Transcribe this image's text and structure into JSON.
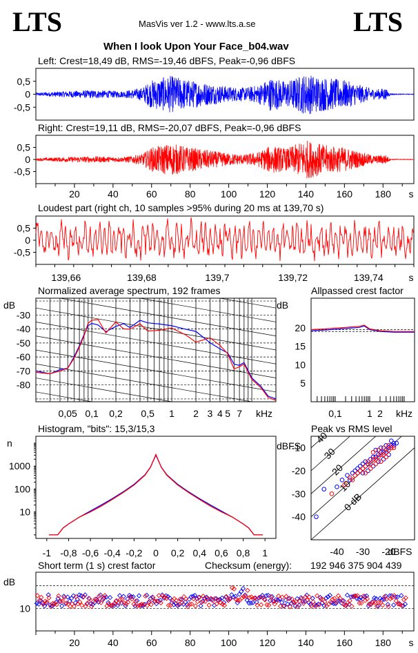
{
  "header": {
    "logo_left": "LTS",
    "logo_right": "LTS",
    "app_title": "MasVis ver 1.2 - www.lts.a.se",
    "file_name": "When I look Upon Your Face_b04.wav"
  },
  "colors": {
    "left_channel": "#0000ff",
    "right_channel": "#ff0000"
  },
  "chart_data": [
    {
      "type": "line",
      "id": "waveform-left",
      "title": "Left: Crest=18,49 dB, RMS=-19,46 dBFS, Peak=-0,96 dBFS",
      "series": [
        {
          "name": "Left",
          "color": "#0000ff"
        }
      ],
      "xlim": [
        0,
        196
      ],
      "ylim": [
        -1,
        1
      ],
      "yticks": [
        "0,5",
        "0",
        "-0,5"
      ],
      "envelope": [
        {
          "x": 0,
          "a": 0.06
        },
        {
          "x": 15,
          "a": 0.12
        },
        {
          "x": 30,
          "a": 0.16
        },
        {
          "x": 45,
          "a": 0.12
        },
        {
          "x": 55,
          "a": 0.25
        },
        {
          "x": 60,
          "a": 0.55
        },
        {
          "x": 70,
          "a": 0.72
        },
        {
          "x": 80,
          "a": 0.55
        },
        {
          "x": 90,
          "a": 0.42
        },
        {
          "x": 100,
          "a": 0.3
        },
        {
          "x": 108,
          "a": 0.25
        },
        {
          "x": 115,
          "a": 0.35
        },
        {
          "x": 122,
          "a": 0.66
        },
        {
          "x": 130,
          "a": 0.5
        },
        {
          "x": 140,
          "a": 0.8
        },
        {
          "x": 150,
          "a": 0.65
        },
        {
          "x": 160,
          "a": 0.55
        },
        {
          "x": 170,
          "a": 0.32
        },
        {
          "x": 176,
          "a": 0.18
        },
        {
          "x": 181,
          "a": 0.25
        },
        {
          "x": 184,
          "a": 0.02
        },
        {
          "x": 196,
          "a": 0.01
        }
      ]
    },
    {
      "type": "line",
      "id": "waveform-right",
      "title": "Right: Crest=19,11 dB, RMS=-20,07 dBFS, Peak=-0,96 dBFS",
      "series": [
        {
          "name": "Right",
          "color": "#ff0000"
        }
      ],
      "xlim": [
        0,
        196
      ],
      "ylim": [
        -1,
        1
      ],
      "yticks": [
        "0,5",
        "0",
        "-0,5"
      ],
      "xticks": [
        20,
        40,
        60,
        80,
        100,
        120,
        140,
        160,
        180
      ],
      "xunit": "s",
      "envelope": [
        {
          "x": 0,
          "a": 0.05
        },
        {
          "x": 15,
          "a": 0.1
        },
        {
          "x": 30,
          "a": 0.13
        },
        {
          "x": 45,
          "a": 0.1
        },
        {
          "x": 55,
          "a": 0.22
        },
        {
          "x": 60,
          "a": 0.5
        },
        {
          "x": 70,
          "a": 0.68
        },
        {
          "x": 80,
          "a": 0.5
        },
        {
          "x": 90,
          "a": 0.38
        },
        {
          "x": 100,
          "a": 0.26
        },
        {
          "x": 108,
          "a": 0.2
        },
        {
          "x": 115,
          "a": 0.3
        },
        {
          "x": 122,
          "a": 0.6
        },
        {
          "x": 130,
          "a": 0.45
        },
        {
          "x": 140,
          "a": 0.82
        },
        {
          "x": 150,
          "a": 0.6
        },
        {
          "x": 160,
          "a": 0.5
        },
        {
          "x": 170,
          "a": 0.28
        },
        {
          "x": 176,
          "a": 0.15
        },
        {
          "x": 181,
          "a": 0.22
        },
        {
          "x": 184,
          "a": 0.02
        },
        {
          "x": 196,
          "a": 0.01
        }
      ]
    },
    {
      "type": "line",
      "id": "loudest-part",
      "title": "Loudest part (right ch, 10 samples >95% during 20 ms at 139,70 s)",
      "series": [
        {
          "name": "Right",
          "color": "#ff0000"
        }
      ],
      "xlim": [
        139.652,
        139.752
      ],
      "ylim": [
        -1,
        1
      ],
      "yticks": [
        "0,5",
        "0",
        "-0,5"
      ],
      "xticks": [
        "139,66",
        "139,68",
        "139,7",
        "139,72",
        "139,74"
      ],
      "xtick_values": [
        139.66,
        139.68,
        139.7,
        139.72,
        139.74
      ],
      "xunit": "s"
    },
    {
      "type": "line",
      "id": "avg-spectrum",
      "title": "Normalized average spectrum, 192 frames",
      "ylabel": "dB",
      "xlabel": "kHz",
      "xscale": "log",
      "xlim": [
        0.02,
        20
      ],
      "ylim": [
        -92,
        -18
      ],
      "yticks": [
        -30,
        -40,
        -50,
        -60,
        -70,
        -80
      ],
      "xticks": [
        "0,05",
        "0,1",
        "0,2",
        "0,5",
        "1",
        "2",
        "3",
        "4",
        "5",
        "7"
      ],
      "xtick_values": [
        0.05,
        0.1,
        0.2,
        0.5,
        1,
        2,
        3,
        4,
        5,
        7
      ],
      "series": [
        {
          "name": "Left",
          "color": "#0000ff",
          "x": [
            0.02,
            0.03,
            0.04,
            0.05,
            0.06,
            0.07,
            0.08,
            0.09,
            0.1,
            0.12,
            0.15,
            0.2,
            0.25,
            0.3,
            0.4,
            0.5,
            0.7,
            1,
            1.5,
            2,
            3,
            4,
            5,
            6,
            7,
            8,
            10,
            13,
            16,
            20
          ],
          "y": [
            -70,
            -72,
            -69,
            -68,
            -60,
            -52,
            -44,
            -38,
            -36,
            -34,
            -42,
            -35,
            -40,
            -36,
            -33,
            -38,
            -37,
            -39,
            -41,
            -45,
            -47,
            -52,
            -55,
            -65,
            -66,
            -64,
            -75,
            -81,
            -88,
            -90
          ]
        },
        {
          "name": "Right",
          "color": "#ff0000",
          "x": [
            0.02,
            0.03,
            0.04,
            0.05,
            0.06,
            0.07,
            0.08,
            0.09,
            0.1,
            0.12,
            0.15,
            0.2,
            0.25,
            0.3,
            0.4,
            0.5,
            0.7,
            1,
            1.5,
            2,
            3,
            4,
            5,
            6,
            7,
            8,
            10,
            13,
            16,
            20
          ],
          "y": [
            -71,
            -72,
            -70,
            -68,
            -61,
            -53,
            -45,
            -39,
            -37,
            -35,
            -43,
            -36,
            -41,
            -37,
            -34,
            -38,
            -38,
            -40,
            -42,
            -46,
            -48,
            -53,
            -56,
            -66,
            -67,
            -65,
            -76,
            -82,
            -89,
            -91
          ]
        }
      ]
    },
    {
      "type": "line",
      "id": "allpassed-crest",
      "title": "Allpassed crest factor",
      "ylabel": "dB",
      "xlabel": "kHz",
      "xscale": "log",
      "xlim": [
        0.02,
        20
      ],
      "ylim": [
        0,
        28
      ],
      "yticks": [
        20,
        15,
        10,
        5
      ],
      "xticks": [
        "0,1",
        "1",
        "2"
      ],
      "xtick_values": [
        0.1,
        1,
        2
      ],
      "series": [
        {
          "name": "Left",
          "color": "#0000ff",
          "x": [
            0.02,
            0.05,
            0.1,
            0.2,
            0.5,
            0.7,
            1,
            2,
            5,
            10,
            20
          ],
          "y": [
            19.2,
            19.4,
            19.6,
            19.8,
            20.1,
            20.5,
            19.5,
            19.0,
            18.8,
            18.8,
            18.8
          ]
        },
        {
          "name": "Right",
          "color": "#ff0000",
          "x": [
            0.02,
            0.05,
            0.1,
            0.2,
            0.5,
            0.7,
            1,
            2,
            5,
            10,
            20
          ],
          "y": [
            19.5,
            19.7,
            19.9,
            20.1,
            20.4,
            20.7,
            19.7,
            19.2,
            19.0,
            19.0,
            19.0
          ]
        }
      ],
      "reference_lines": [
        19.5,
        19.0
      ]
    },
    {
      "type": "line",
      "id": "histogram",
      "title": "Histogram, \"bits\": 15,3/15,3",
      "ylabel": "n",
      "yscale": "log",
      "xlim": [
        -1.1,
        1.1
      ],
      "ylim": [
        0.7,
        20000
      ],
      "yticks": [
        "1000",
        "100",
        "10"
      ],
      "ytick_values": [
        1000,
        100,
        10
      ],
      "xticks": [
        "-1",
        "-0,8",
        "-0,6",
        "-0,4",
        "-0,2",
        "0",
        "0,2",
        "0,4",
        "0,6",
        "0,8",
        "1"
      ],
      "xtick_values": [
        -1,
        -0.8,
        -0.6,
        -0.4,
        -0.2,
        0,
        0.2,
        0.4,
        0.6,
        0.8,
        1
      ],
      "series": [
        {
          "name": "Left",
          "color": "#0000ff",
          "x": [
            -0.98,
            -0.9,
            -0.85,
            -0.8,
            -0.7,
            -0.6,
            -0.5,
            -0.4,
            -0.3,
            -0.2,
            -0.1,
            -0.05,
            0,
            0.05,
            0.1,
            0.2,
            0.3,
            0.4,
            0.5,
            0.6,
            0.7,
            0.8,
            0.85,
            0.9,
            0.98
          ],
          "y": [
            1,
            1,
            2,
            3,
            6,
            11,
            20,
            38,
            75,
            160,
            420,
            900,
            3000,
            900,
            420,
            160,
            75,
            38,
            20,
            11,
            6,
            3,
            2,
            1,
            1
          ]
        },
        {
          "name": "Right",
          "color": "#ff0000",
          "x": [
            -0.98,
            -0.9,
            -0.85,
            -0.8,
            -0.7,
            -0.6,
            -0.5,
            -0.4,
            -0.3,
            -0.2,
            -0.1,
            -0.05,
            0,
            0.05,
            0.1,
            0.2,
            0.3,
            0.4,
            0.5,
            0.6,
            0.7,
            0.8,
            0.85,
            0.9,
            0.98
          ],
          "y": [
            1,
            1,
            2,
            3,
            6,
            10,
            18,
            35,
            70,
            150,
            400,
            880,
            3200,
            880,
            400,
            150,
            70,
            35,
            18,
            10,
            6,
            3,
            2,
            1,
            1
          ]
        }
      ]
    },
    {
      "type": "scatter",
      "id": "peak-vs-rms",
      "title": "Peak vs RMS level",
      "ylabel": "dBFS",
      "xlabel": "dBFS",
      "xlim": [
        -50,
        -10
      ],
      "ylim": [
        -50,
        -5
      ],
      "yticks": [
        -10,
        -20,
        -30,
        -40
      ],
      "xticks": [
        -40,
        -30,
        -20
      ],
      "diagonal_labels": [
        "40",
        "30",
        "20",
        "10",
        "0 dB"
      ],
      "crest_offsets": [
        40,
        30,
        20,
        10,
        0
      ],
      "series": [
        {
          "name": "Left",
          "color": "#0000ff",
          "points": [
            [
              -48,
              -40
            ],
            [
              -45,
              -28
            ],
            [
              -40,
              -27
            ],
            [
              -38,
              -24
            ],
            [
              -36,
              -22
            ],
            [
              -35,
              -24
            ],
            [
              -34,
              -21
            ],
            [
              -33,
              -20
            ],
            [
              -32,
              -19
            ],
            [
              -31,
              -18
            ],
            [
              -30,
              -17
            ],
            [
              -29,
              -16
            ],
            [
              -28,
              -17
            ],
            [
              -27,
              -15
            ],
            [
              -26,
              -14
            ],
            [
              -25,
              -14
            ],
            [
              -24,
              -13
            ],
            [
              -23,
              -12
            ],
            [
              -22,
              -12
            ],
            [
              -21,
              -11
            ],
            [
              -20,
              -10
            ],
            [
              -19,
              -9
            ],
            [
              -18,
              -9
            ],
            [
              -17,
              -8
            ],
            [
              -28,
              -20
            ],
            [
              -26,
              -18
            ],
            [
              -24,
              -16
            ],
            [
              -22,
              -15
            ],
            [
              -20,
              -13
            ],
            [
              -30,
              -21
            ],
            [
              -25,
              -11
            ],
            [
              -23,
              -10
            ],
            [
              -21,
              -9
            ],
            [
              -19,
              -7
            ],
            [
              -18,
              -8
            ]
          ]
        },
        {
          "name": "Right",
          "color": "#ff0000",
          "points": [
            [
              -42,
              -30
            ],
            [
              -37,
              -26
            ],
            [
              -35,
              -23
            ],
            [
              -34,
              -24
            ],
            [
              -33,
              -22
            ],
            [
              -32,
              -21
            ],
            [
              -31,
              -20
            ],
            [
              -30,
              -19
            ],
            [
              -29,
              -18
            ],
            [
              -28,
              -16
            ],
            [
              -27,
              -17
            ],
            [
              -26,
              -15
            ],
            [
              -25,
              -15
            ],
            [
              -24,
              -14
            ],
            [
              -23,
              -13
            ],
            [
              -22,
              -13
            ],
            [
              -21,
              -12
            ],
            [
              -20,
              -11
            ],
            [
              -19,
              -10
            ],
            [
              -18,
              -10
            ],
            [
              -29,
              -21
            ],
            [
              -27,
              -19
            ],
            [
              -25,
              -17
            ],
            [
              -23,
              -16
            ],
            [
              -21,
              -14
            ],
            [
              -26,
              -12
            ],
            [
              -24,
              -11
            ],
            [
              -22,
              -10
            ],
            [
              -20,
              -9
            ]
          ]
        }
      ]
    },
    {
      "type": "scatter",
      "id": "short-term-crest",
      "title": "Short term (1 s) crest factor",
      "ylabel": "dB",
      "xlim": [
        0,
        196
      ],
      "ylim": [
        0,
        26
      ],
      "yticks": [
        "10"
      ],
      "ytick_values": [
        10
      ],
      "reference_lines": [
        20,
        10
      ],
      "xticks": [
        20,
        40,
        60,
        80,
        100,
        120,
        140,
        160,
        180
      ],
      "xunit": "s",
      "series": [
        {
          "name": "Left",
          "color": "#0000ff",
          "count": 192,
          "mean": 13.5
        },
        {
          "name": "Right",
          "color": "#ff0000",
          "count": 192,
          "mean": 13.2
        }
      ]
    }
  ],
  "checksum": {
    "label": "Checksum (energy):",
    "value": "192 946 375 904 439"
  }
}
